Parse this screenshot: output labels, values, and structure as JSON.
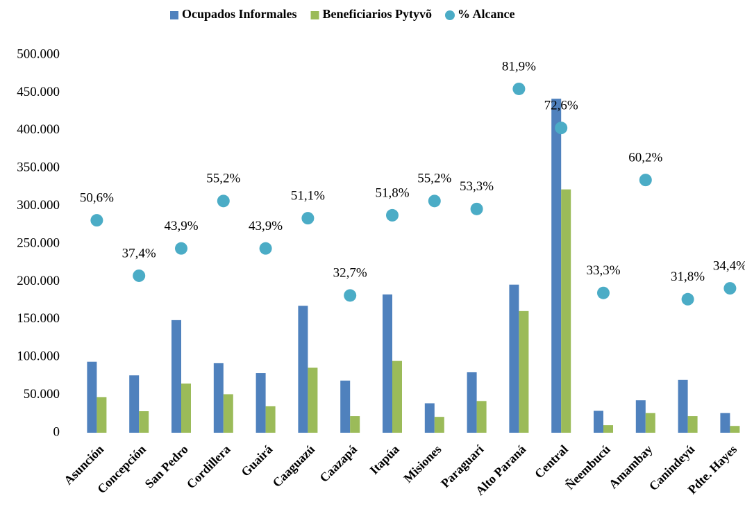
{
  "chart_data": {
    "type": "bar_scatter",
    "categories": [
      "Asunción",
      "Concepción",
      "San Pedro",
      "Cordillera",
      "Guairá",
      "Caaguazú",
      "Caazapá",
      "Itapúa",
      "Misiones",
      "Paraguarí",
      "Alto Paraná",
      "Central",
      "Ñeembucú",
      "Amambay",
      "Canindeyú",
      "Pdte. Hayes"
    ],
    "series": [
      {
        "name": "Ocupados Informales",
        "color": "#4f81bd",
        "type": "bar",
        "values": [
          94000,
          76000,
          149000,
          92000,
          79000,
          168000,
          69000,
          183000,
          39000,
          80000,
          196000,
          442000,
          29000,
          43000,
          70000,
          26000
        ]
      },
      {
        "name": "Beneficiarios Pytyvõ",
        "color": "#9bbb59",
        "type": "bar",
        "values": [
          47000,
          28500,
          65000,
          51000,
          35000,
          86000,
          22000,
          95000,
          21000,
          42000,
          161000,
          322000,
          10000,
          26000,
          22000,
          9000
        ]
      },
      {
        "name": "% Alcance",
        "color": "#4bacc6",
        "type": "scatter",
        "axis": "y2",
        "values": [
          50.6,
          37.4,
          43.9,
          55.2,
          43.9,
          51.1,
          32.7,
          51.8,
          55.2,
          53.3,
          81.9,
          72.6,
          33.3,
          60.2,
          31.8,
          34.4
        ],
        "value_labels": [
          "50,6%",
          "37,4%",
          "43,9%",
          "55,2%",
          "43,9%",
          "51,1%",
          "32,7%",
          "51,8%",
          "55,2%",
          "53,3%",
          "81,9%",
          "72,6%",
          "33,3%",
          "60,2%",
          "31,8%",
          "34,4%"
        ]
      }
    ],
    "ylim": [
      0,
      500000
    ],
    "yticks": [
      0,
      {
        "value": 50000,
        "label": "50.000"
      },
      {
        "value": 100000,
        "label": "100.000"
      },
      {
        "value": 150000,
        "label": "150.000"
      },
      {
        "value": 200000,
        "label": "200.000"
      },
      {
        "value": 250000,
        "label": "250.000"
      },
      {
        "value": 300000,
        "label": "300.000"
      },
      {
        "value": 350000,
        "label": "350.000"
      },
      {
        "value": 400000,
        "label": "400.000"
      },
      {
        "value": 450000,
        "label": "450.000"
      },
      {
        "value": 500000,
        "label": "500.000"
      }
    ],
    "y2lim": [
      0,
      90
    ],
    "legend": "top"
  }
}
